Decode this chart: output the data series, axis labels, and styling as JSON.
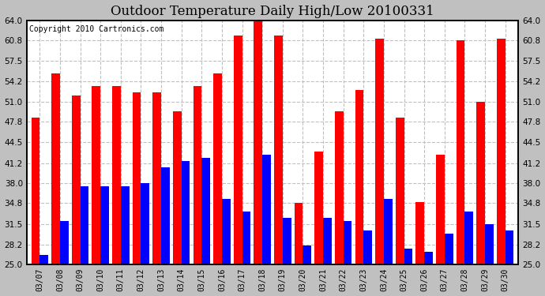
{
  "title": "Outdoor Temperature Daily High/Low 20100331",
  "copyright": "Copyright 2010 Cartronics.com",
  "dates": [
    "03/07",
    "03/08",
    "03/09",
    "03/10",
    "03/11",
    "03/12",
    "03/13",
    "03/14",
    "03/15",
    "03/16",
    "03/17",
    "03/18",
    "03/19",
    "03/20",
    "03/21",
    "03/22",
    "03/23",
    "03/24",
    "03/25",
    "03/26",
    "03/27",
    "03/28",
    "03/29",
    "03/30"
  ],
  "highs": [
    48.5,
    55.5,
    52.0,
    53.5,
    53.5,
    52.5,
    52.5,
    49.5,
    53.5,
    55.5,
    61.5,
    64.5,
    61.5,
    34.8,
    43.0,
    49.5,
    52.8,
    61.0,
    48.5,
    35.0,
    42.5,
    60.8,
    51.0,
    61.0
  ],
  "lows": [
    26.5,
    32.0,
    37.5,
    37.5,
    37.5,
    38.0,
    40.5,
    41.5,
    42.0,
    35.5,
    33.5,
    42.5,
    32.5,
    28.0,
    32.5,
    32.0,
    30.5,
    35.5,
    27.5,
    27.0,
    30.0,
    33.5,
    31.5,
    30.5
  ],
  "high_color": "#ff0000",
  "low_color": "#0000ff",
  "fig_facecolor": "#c0c0c0",
  "plot_facecolor": "#ffffff",
  "ylim": [
    25.0,
    64.0
  ],
  "yticks": [
    25.0,
    28.2,
    31.5,
    34.8,
    38.0,
    41.2,
    44.5,
    47.8,
    51.0,
    54.2,
    57.5,
    60.8,
    64.0
  ],
  "title_fontsize": 12,
  "copyright_fontsize": 7,
  "bar_width": 0.42,
  "figsize": [
    6.9,
    3.75
  ],
  "dpi": 100
}
